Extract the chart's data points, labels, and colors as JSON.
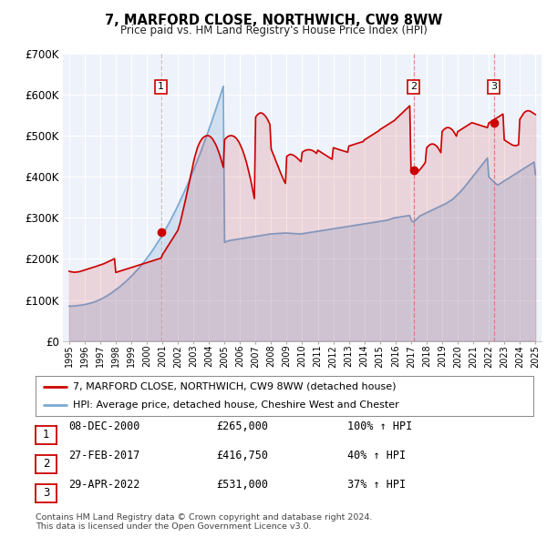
{
  "title": "7, MARFORD CLOSE, NORTHWICH, CW9 8WW",
  "subtitle": "Price paid vs. HM Land Registry's House Price Index (HPI)",
  "legend_line1": "7, MARFORD CLOSE, NORTHWICH, CW9 8WW (detached house)",
  "legend_line2": "HPI: Average price, detached house, Cheshire West and Chester",
  "footer1": "Contains HM Land Registry data © Crown copyright and database right 2024.",
  "footer2": "This data is licensed under the Open Government Licence v3.0.",
  "transactions": [
    {
      "num": 1,
      "date": "08-DEC-2000",
      "price": 265000,
      "price_str": "£265,000",
      "pct": "100%",
      "year": 2000.92
    },
    {
      "num": 2,
      "date": "27-FEB-2017",
      "price": 416750,
      "price_str": "£416,750",
      "pct": "40%",
      "year": 2017.16
    },
    {
      "num": 3,
      "date": "29-APR-2022",
      "price": 531000,
      "price_str": "£531,000",
      "pct": "37%",
      "year": 2022.33
    }
  ],
  "price_line_color": "#cc0000",
  "hpi_line_color": "#7aaad4",
  "grid_color": "#dddddd",
  "plot_bg_color": "#eef2fa",
  "ylim": [
    0,
    700000
  ],
  "yticks": [
    0,
    100000,
    200000,
    300000,
    400000,
    500000,
    600000,
    700000
  ],
  "ytick_labels": [
    "£0",
    "£100K",
    "£200K",
    "£300K",
    "£400K",
    "£500K",
    "£600K",
    "£700K"
  ],
  "xlim_start": 1994.6,
  "xlim_end": 2025.4,
  "hpi_years": [
    1995.0,
    1995.08,
    1995.17,
    1995.25,
    1995.33,
    1995.42,
    1995.5,
    1995.58,
    1995.67,
    1995.75,
    1995.83,
    1995.92,
    1996.0,
    1996.08,
    1996.17,
    1996.25,
    1996.33,
    1996.42,
    1996.5,
    1996.58,
    1996.67,
    1996.75,
    1996.83,
    1996.92,
    1997.0,
    1997.08,
    1997.17,
    1997.25,
    1997.33,
    1997.42,
    1997.5,
    1997.58,
    1997.67,
    1997.75,
    1997.83,
    1997.92,
    1998.0,
    1998.08,
    1998.17,
    1998.25,
    1998.33,
    1998.42,
    1998.5,
    1998.58,
    1998.67,
    1998.75,
    1998.83,
    1998.92,
    1999.0,
    1999.08,
    1999.17,
    1999.25,
    1999.33,
    1999.42,
    1999.5,
    1999.58,
    1999.67,
    1999.75,
    1999.83,
    1999.92,
    2000.0,
    2000.08,
    2000.17,
    2000.25,
    2000.33,
    2000.42,
    2000.5,
    2000.58,
    2000.67,
    2000.75,
    2000.83,
    2000.92,
    2001.0,
    2001.08,
    2001.17,
    2001.25,
    2001.33,
    2001.42,
    2001.5,
    2001.58,
    2001.67,
    2001.75,
    2001.83,
    2001.92,
    2002.0,
    2002.08,
    2002.17,
    2002.25,
    2002.33,
    2002.42,
    2002.5,
    2002.58,
    2002.67,
    2002.75,
    2002.83,
    2002.92,
    2003.0,
    2003.08,
    2003.17,
    2003.25,
    2003.33,
    2003.42,
    2003.5,
    2003.58,
    2003.67,
    2003.75,
    2003.83,
    2003.92,
    2004.0,
    2004.08,
    2004.17,
    2004.25,
    2004.33,
    2004.42,
    2004.5,
    2004.58,
    2004.67,
    2004.75,
    2004.83,
    2004.92,
    2005.0,
    2005.08,
    2005.17,
    2005.25,
    2005.33,
    2005.42,
    2005.5,
    2005.58,
    2005.67,
    2005.75,
    2005.83,
    2005.92,
    2006.0,
    2006.08,
    2006.17,
    2006.25,
    2006.33,
    2006.42,
    2006.5,
    2006.58,
    2006.67,
    2006.75,
    2006.83,
    2006.92,
    2007.0,
    2007.08,
    2007.17,
    2007.25,
    2007.33,
    2007.42,
    2007.5,
    2007.58,
    2007.67,
    2007.75,
    2007.83,
    2007.92,
    2008.0,
    2008.08,
    2008.17,
    2008.25,
    2008.33,
    2008.42,
    2008.5,
    2008.58,
    2008.67,
    2008.75,
    2008.83,
    2008.92,
    2009.0,
    2009.08,
    2009.17,
    2009.25,
    2009.33,
    2009.42,
    2009.5,
    2009.58,
    2009.67,
    2009.75,
    2009.83,
    2009.92,
    2010.0,
    2010.08,
    2010.17,
    2010.25,
    2010.33,
    2010.42,
    2010.5,
    2010.58,
    2010.67,
    2010.75,
    2010.83,
    2010.92,
    2011.0,
    2011.08,
    2011.17,
    2011.25,
    2011.33,
    2011.42,
    2011.5,
    2011.58,
    2011.67,
    2011.75,
    2011.83,
    2011.92,
    2012.0,
    2012.08,
    2012.17,
    2012.25,
    2012.33,
    2012.42,
    2012.5,
    2012.58,
    2012.67,
    2012.75,
    2012.83,
    2012.92,
    2013.0,
    2013.08,
    2013.17,
    2013.25,
    2013.33,
    2013.42,
    2013.5,
    2013.58,
    2013.67,
    2013.75,
    2013.83,
    2013.92,
    2014.0,
    2014.08,
    2014.17,
    2014.25,
    2014.33,
    2014.42,
    2014.5,
    2014.58,
    2014.67,
    2014.75,
    2014.83,
    2014.92,
    2015.0,
    2015.08,
    2015.17,
    2015.25,
    2015.33,
    2015.42,
    2015.5,
    2015.58,
    2015.67,
    2015.75,
    2015.83,
    2015.92,
    2016.0,
    2016.08,
    2016.17,
    2016.25,
    2016.33,
    2016.42,
    2016.5,
    2016.58,
    2016.67,
    2016.75,
    2016.83,
    2016.92,
    2017.0,
    2017.08,
    2017.17,
    2017.25,
    2017.33,
    2017.42,
    2017.5,
    2017.58,
    2017.67,
    2017.75,
    2017.83,
    2017.92,
    2018.0,
    2018.08,
    2018.17,
    2018.25,
    2018.33,
    2018.42,
    2018.5,
    2018.58,
    2018.67,
    2018.75,
    2018.83,
    2018.92,
    2019.0,
    2019.08,
    2019.17,
    2019.25,
    2019.33,
    2019.42,
    2019.5,
    2019.58,
    2019.67,
    2019.75,
    2019.83,
    2019.92,
    2020.0,
    2020.08,
    2020.17,
    2020.25,
    2020.33,
    2020.42,
    2020.5,
    2020.58,
    2020.67,
    2020.75,
    2020.83,
    2020.92,
    2021.0,
    2021.08,
    2021.17,
    2021.25,
    2021.33,
    2021.42,
    2021.5,
    2021.58,
    2021.67,
    2021.75,
    2021.83,
    2021.92,
    2022.0,
    2022.08,
    2022.17,
    2022.25,
    2022.33,
    2022.42,
    2022.5,
    2022.58,
    2022.67,
    2022.75,
    2022.83,
    2022.92,
    2023.0,
    2023.08,
    2023.17,
    2023.25,
    2023.33,
    2023.42,
    2023.5,
    2023.58,
    2023.67,
    2023.75,
    2023.83,
    2023.92,
    2024.0,
    2024.08,
    2024.17,
    2024.25,
    2024.33,
    2024.42,
    2024.5,
    2024.58,
    2024.67,
    2024.75,
    2024.83,
    2024.92,
    2025.0
  ],
  "hpi_values": [
    85000,
    85200,
    85100,
    85300,
    85500,
    85800,
    86200,
    86500,
    86900,
    87300,
    87800,
    88300,
    89000,
    89500,
    90200,
    91000,
    91800,
    92700,
    93700,
    94700,
    95800,
    97000,
    98300,
    99700,
    101200,
    102700,
    104300,
    106000,
    107800,
    109700,
    111600,
    113600,
    115700,
    117900,
    120100,
    122400,
    124800,
    127200,
    129700,
    132200,
    134800,
    137400,
    140100,
    142900,
    145700,
    148600,
    151600,
    154700,
    157800,
    161000,
    164300,
    167600,
    171000,
    174500,
    178100,
    181800,
    185600,
    189500,
    193500,
    197600,
    201700,
    205900,
    210200,
    214600,
    219100,
    223700,
    228400,
    233200,
    238100,
    243100,
    248200,
    253400,
    258700,
    264100,
    269600,
    275200,
    280900,
    286700,
    292600,
    298600,
    304700,
    310900,
    317200,
    323600,
    330100,
    336700,
    343400,
    350200,
    357100,
    364100,
    371200,
    378400,
    385700,
    393100,
    400600,
    408200,
    415900,
    423700,
    431600,
    439600,
    447700,
    455900,
    464200,
    472600,
    481100,
    489700,
    498400,
    507200,
    516100,
    525100,
    534200,
    543400,
    552700,
    562100,
    571600,
    581200,
    590900,
    600700,
    610600,
    620600,
    240000,
    242000,
    243000,
    244000,
    245000,
    245500,
    246000,
    246500,
    247000,
    247500,
    248000,
    248500,
    249000,
    249500,
    250000,
    250500,
    251000,
    251500,
    252000,
    252500,
    253000,
    253500,
    254000,
    254500,
    255000,
    255500,
    256000,
    256500,
    257000,
    257500,
    258000,
    258500,
    259000,
    259500,
    260000,
    260500,
    261000,
    261200,
    261400,
    261600,
    261800,
    262000,
    262200,
    262400,
    262600,
    262800,
    263000,
    263200,
    263000,
    262800,
    262600,
    262400,
    262200,
    262000,
    261800,
    261600,
    261400,
    261200,
    261000,
    261000,
    261500,
    262000,
    262500,
    263000,
    263500,
    264000,
    264500,
    265000,
    265500,
    266000,
    266500,
    267000,
    267500,
    268000,
    268500,
    269000,
    269500,
    270000,
    270500,
    271000,
    271500,
    272000,
    272500,
    273000,
    273500,
    274000,
    274500,
    275000,
    275500,
    276000,
    276500,
    277000,
    277500,
    278000,
    278500,
    279000,
    279500,
    280000,
    280500,
    281000,
    281500,
    282000,
    282500,
    283000,
    283500,
    284000,
    284500,
    285000,
    285500,
    286000,
    286500,
    287000,
    287500,
    288000,
    288500,
    289000,
    289500,
    290000,
    290500,
    291000,
    291500,
    292000,
    292500,
    293000,
    293500,
    294000,
    295000,
    296000,
    297000,
    298000,
    299000,
    300000,
    300500,
    301000,
    301500,
    302000,
    302500,
    303000,
    303500,
    304000,
    304500,
    305000,
    305500,
    306000,
    296000,
    291000,
    290000,
    293000,
    296000,
    299000,
    302000,
    305000,
    306500,
    308000,
    309500,
    311000,
    312500,
    314000,
    315500,
    317000,
    318500,
    320000,
    321500,
    323000,
    324500,
    326000,
    327500,
    329000,
    330500,
    332000,
    333500,
    335000,
    337000,
    339000,
    341000,
    343000,
    345000,
    348000,
    351000,
    354000,
    357000,
    360000,
    363500,
    367000,
    370500,
    374000,
    378000,
    382000,
    386000,
    390000,
    394000,
    398000,
    402000,
    406000,
    410000,
    414000,
    418000,
    422000,
    426000,
    430000,
    434000,
    438000,
    442000,
    446000,
    400000,
    397000,
    394000,
    391000,
    388000,
    385000,
    382000,
    380000,
    382000,
    384000,
    386000,
    388000,
    390000,
    392000,
    394000,
    396000,
    398000,
    400000,
    402000,
    404000,
    406000,
    408000,
    410000,
    412000,
    414000,
    416000,
    418000,
    420000,
    422000,
    424000,
    426000,
    428000,
    430000,
    432000,
    434000,
    436000,
    406000
  ],
  "red_years": [
    1995.0,
    1995.08,
    1995.17,
    1995.25,
    1995.33,
    1995.42,
    1995.5,
    1995.58,
    1995.67,
    1995.75,
    1995.83,
    1995.92,
    1996.0,
    1996.08,
    1996.17,
    1996.25,
    1996.33,
    1996.42,
    1996.5,
    1996.58,
    1996.67,
    1996.75,
    1996.83,
    1996.92,
    1997.0,
    1997.08,
    1997.17,
    1997.25,
    1997.33,
    1997.42,
    1997.5,
    1997.58,
    1997.67,
    1997.75,
    1997.83,
    1997.92,
    1998.0,
    1998.08,
    1998.17,
    1998.25,
    1998.33,
    1998.42,
    1998.5,
    1998.58,
    1998.67,
    1998.75,
    1998.83,
    1998.92,
    1999.0,
    1999.08,
    1999.17,
    1999.25,
    1999.33,
    1999.42,
    1999.5,
    1999.58,
    1999.67,
    1999.75,
    1999.83,
    1999.92,
    2000.0,
    2000.08,
    2000.17,
    2000.25,
    2000.33,
    2000.42,
    2000.5,
    2000.58,
    2000.67,
    2000.75,
    2000.83,
    2000.92,
    2001.0,
    2001.08,
    2001.17,
    2001.25,
    2001.33,
    2001.42,
    2001.5,
    2001.58,
    2001.67,
    2001.75,
    2001.83,
    2001.92,
    2002.0,
    2002.08,
    2002.17,
    2002.25,
    2002.33,
    2002.42,
    2002.5,
    2002.58,
    2002.67,
    2002.75,
    2002.83,
    2002.92,
    2003.0,
    2003.08,
    2003.17,
    2003.25,
    2003.33,
    2003.42,
    2003.5,
    2003.58,
    2003.67,
    2003.75,
    2003.83,
    2003.92,
    2004.0,
    2004.08,
    2004.17,
    2004.25,
    2004.33,
    2004.42,
    2004.5,
    2004.58,
    2004.67,
    2004.75,
    2004.83,
    2004.92,
    2005.0,
    2005.08,
    2005.17,
    2005.25,
    2005.33,
    2005.42,
    2005.5,
    2005.58,
    2005.67,
    2005.75,
    2005.83,
    2005.92,
    2006.0,
    2006.08,
    2006.17,
    2006.25,
    2006.33,
    2006.42,
    2006.5,
    2006.58,
    2006.67,
    2006.75,
    2006.83,
    2006.92,
    2007.0,
    2007.08,
    2007.17,
    2007.25,
    2007.33,
    2007.42,
    2007.5,
    2007.58,
    2007.67,
    2007.75,
    2007.83,
    2007.92,
    2008.0,
    2008.08,
    2008.17,
    2008.25,
    2008.33,
    2008.42,
    2008.5,
    2008.58,
    2008.67,
    2008.75,
    2008.83,
    2008.92,
    2009.0,
    2009.08,
    2009.17,
    2009.25,
    2009.33,
    2009.42,
    2009.5,
    2009.58,
    2009.67,
    2009.75,
    2009.83,
    2009.92,
    2010.0,
    2010.08,
    2010.17,
    2010.25,
    2010.33,
    2010.42,
    2010.5,
    2010.58,
    2010.67,
    2010.75,
    2010.83,
    2010.92,
    2011.0,
    2011.08,
    2011.17,
    2011.25,
    2011.33,
    2011.42,
    2011.5,
    2011.58,
    2011.67,
    2011.75,
    2011.83,
    2011.92,
    2012.0,
    2012.08,
    2012.17,
    2012.25,
    2012.33,
    2012.42,
    2012.5,
    2012.58,
    2012.67,
    2012.75,
    2012.83,
    2012.92,
    2013.0,
    2013.08,
    2013.17,
    2013.25,
    2013.33,
    2013.42,
    2013.5,
    2013.58,
    2013.67,
    2013.75,
    2013.83,
    2013.92,
    2014.0,
    2014.08,
    2014.17,
    2014.25,
    2014.33,
    2014.42,
    2014.5,
    2014.58,
    2014.67,
    2014.75,
    2014.83,
    2014.92,
    2015.0,
    2015.08,
    2015.17,
    2015.25,
    2015.33,
    2015.42,
    2015.5,
    2015.58,
    2015.67,
    2015.75,
    2015.83,
    2015.92,
    2016.0,
    2016.08,
    2016.17,
    2016.25,
    2016.33,
    2016.42,
    2016.5,
    2016.58,
    2016.67,
    2016.75,
    2016.83,
    2016.92,
    2017.0,
    2017.08,
    2017.17,
    2017.25,
    2017.33,
    2017.42,
    2017.5,
    2017.58,
    2017.67,
    2017.75,
    2017.83,
    2017.92,
    2018.0,
    2018.08,
    2018.17,
    2018.25,
    2018.33,
    2018.42,
    2018.5,
    2018.58,
    2018.67,
    2018.75,
    2018.83,
    2018.92,
    2019.0,
    2019.08,
    2019.17,
    2019.25,
    2019.33,
    2019.42,
    2019.5,
    2019.58,
    2019.67,
    2019.75,
    2019.83,
    2019.92,
    2020.0,
    2020.08,
    2020.17,
    2020.25,
    2020.33,
    2020.42,
    2020.5,
    2020.58,
    2020.67,
    2020.75,
    2020.83,
    2020.92,
    2021.0,
    2021.08,
    2021.17,
    2021.25,
    2021.33,
    2021.42,
    2021.5,
    2021.58,
    2021.67,
    2021.75,
    2021.83,
    2021.92,
    2022.0,
    2022.08,
    2022.17,
    2022.25,
    2022.33,
    2022.42,
    2022.5,
    2022.58,
    2022.67,
    2022.75,
    2022.83,
    2022.92,
    2023.0,
    2023.08,
    2023.17,
    2023.25,
    2023.33,
    2023.42,
    2023.5,
    2023.58,
    2023.67,
    2023.75,
    2023.83,
    2023.92,
    2024.0,
    2024.08,
    2024.17,
    2024.25,
    2024.33,
    2024.42,
    2024.5,
    2024.58,
    2024.67,
    2024.75,
    2024.83,
    2024.92,
    2025.0
  ],
  "red_values": [
    170000,
    169000,
    168500,
    168000,
    167500,
    167800,
    168000,
    168500,
    169000,
    170000,
    171000,
    172000,
    173000,
    174000,
    175000,
    176000,
    177000,
    178000,
    179000,
    180000,
    181000,
    182000,
    183000,
    184000,
    185000,
    186000,
    187000,
    188500,
    190000,
    191500,
    193000,
    194500,
    196000,
    197500,
    199000,
    200500,
    167000,
    168000,
    169000,
    170000,
    171000,
    172000,
    173000,
    174000,
    175000,
    176000,
    177000,
    178000,
    179000,
    180000,
    181000,
    182000,
    183000,
    184000,
    185000,
    186000,
    187000,
    188000,
    189000,
    190000,
    191000,
    192000,
    193000,
    194000,
    195000,
    196000,
    197000,
    198000,
    199000,
    200000,
    201000,
    202000,
    210000,
    215000,
    220000,
    225000,
    230000,
    235000,
    240000,
    245000,
    250000,
    255000,
    260000,
    265000,
    270000,
    280000,
    292000,
    305000,
    318000,
    332000,
    346000,
    360000,
    375000,
    390000,
    405000,
    420000,
    435000,
    448000,
    460000,
    470000,
    478000,
    485000,
    490000,
    494000,
    497000,
    499000,
    500000,
    500500,
    500000,
    498000,
    495000,
    491000,
    486000,
    480000,
    473000,
    465000,
    456000,
    446000,
    435000,
    423000,
    490000,
    494000,
    497000,
    499000,
    500000,
    500500,
    500000,
    499000,
    497000,
    494000,
    490000,
    485000,
    479000,
    472000,
    464000,
    455000,
    445000,
    434000,
    422000,
    409000,
    395000,
    380000,
    364000,
    347000,
    545000,
    550000,
    553000,
    555000,
    556000,
    555000,
    553000,
    550000,
    546000,
    541000,
    535000,
    528000,
    468000,
    460000,
    452000,
    444000,
    436000,
    428000,
    420000,
    412000,
    404000,
    397000,
    390000,
    384000,
    450000,
    452000,
    454000,
    455000,
    454000,
    453000,
    451000,
    449000,
    446000,
    443000,
    440000,
    437000,
    460000,
    462000,
    464000,
    465000,
    466000,
    466000,
    466000,
    465000,
    464000,
    462000,
    460000,
    457000,
    465000,
    463000,
    461000,
    459000,
    457000,
    455000,
    453000,
    451000,
    449000,
    447000,
    445000,
    443000,
    471000,
    470000,
    469000,
    468000,
    467000,
    466000,
    465000,
    464000,
    463000,
    462000,
    461000,
    460000,
    475000,
    476000,
    477000,
    478000,
    479000,
    480000,
    481000,
    482000,
    483000,
    484000,
    485000,
    486000,
    490000,
    492000,
    494000,
    496000,
    498000,
    500000,
    502000,
    504000,
    506000,
    508000,
    510000,
    512000,
    515000,
    517000,
    519000,
    521000,
    523000,
    525000,
    527000,
    529000,
    531000,
    533000,
    535000,
    537000,
    540000,
    543000,
    546000,
    549000,
    552000,
    555000,
    558000,
    561000,
    564000,
    567000,
    570000,
    573000,
    416750,
    415000,
    413000,
    411000,
    410000,
    412000,
    415000,
    418000,
    422000,
    426000,
    430000,
    435000,
    470000,
    474000,
    477000,
    479000,
    480000,
    480000,
    479000,
    477000,
    474000,
    470000,
    465000,
    459000,
    510000,
    514000,
    517000,
    519000,
    520000,
    520000,
    519000,
    517000,
    514000,
    510000,
    505000,
    499000,
    510000,
    512000,
    514000,
    516000,
    518000,
    520000,
    522000,
    524000,
    526000,
    528000,
    530000,
    532000,
    531000,
    530000,
    529000,
    528000,
    527000,
    526000,
    525000,
    524000,
    523000,
    522000,
    521000,
    520000,
    531000,
    533000,
    535000,
    537000,
    539000,
    541000,
    543000,
    545000,
    547000,
    549000,
    551000,
    553000,
    490000,
    488000,
    486000,
    484000,
    482000,
    480000,
    478000,
    477000,
    476000,
    476000,
    477000,
    478000,
    540000,
    545000,
    550000,
    555000,
    558000,
    560000,
    561000,
    561000,
    560000,
    558000,
    556000,
    554000,
    552000
  ]
}
